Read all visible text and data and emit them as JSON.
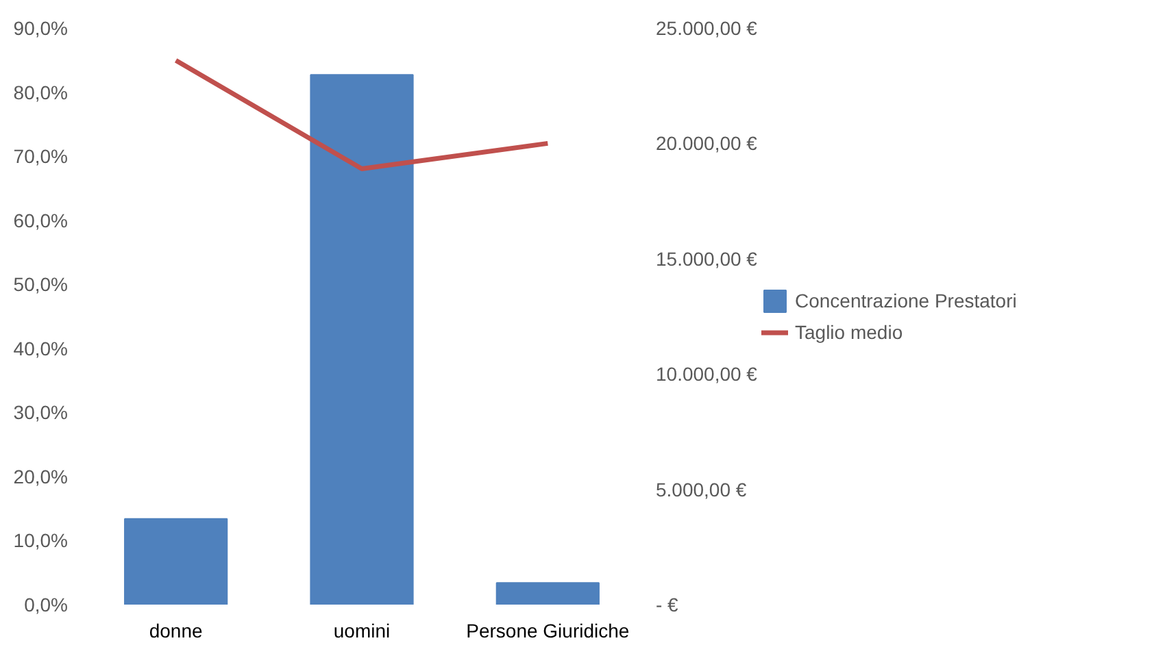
{
  "chart_data": {
    "type": "bar",
    "categories": [
      "donne",
      "uomini",
      "Persone Giuridiche"
    ],
    "series": [
      {
        "name": "Concentrazione Prestatori",
        "color": "#4f81bd",
        "values": [
          13.4,
          82.7,
          3.4
        ]
      },
      {
        "name": "Taglio medio",
        "type": "line",
        "axis": "y2",
        "color": "#c0504d",
        "values": [
          23600,
          18900,
          20000
        ]
      }
    ],
    "ylim": [
      0,
      90
    ],
    "yticks": [
      {
        "value": 0,
        "label": "0,0%"
      },
      {
        "value": 10,
        "label": "10,0%"
      },
      {
        "value": 20,
        "label": "20,0%"
      },
      {
        "value": 30,
        "label": "30,0%"
      },
      {
        "value": 40,
        "label": "40,0%"
      },
      {
        "value": 50,
        "label": "50,0%"
      },
      {
        "value": 60,
        "label": "60,0%"
      },
      {
        "value": 70,
        "label": "70,0%"
      },
      {
        "value": 80,
        "label": "80,0%"
      },
      {
        "value": 90,
        "label": "90,0%"
      }
    ],
    "y2lim": [
      0,
      25000
    ],
    "y2ticks": [
      {
        "value": 0,
        "label": "-   €"
      },
      {
        "value": 5000,
        "label": "5.000,00 €"
      },
      {
        "value": 10000,
        "label": "10.000,00 €"
      },
      {
        "value": 15000,
        "label": "15.000,00 €"
      },
      {
        "value": 20000,
        "label": "20.000,00 €"
      },
      {
        "value": 25000,
        "label": "25.000,00 €"
      }
    ],
    "grid": false,
    "legend": "right",
    "marker": "none",
    "line_style": "solid"
  }
}
